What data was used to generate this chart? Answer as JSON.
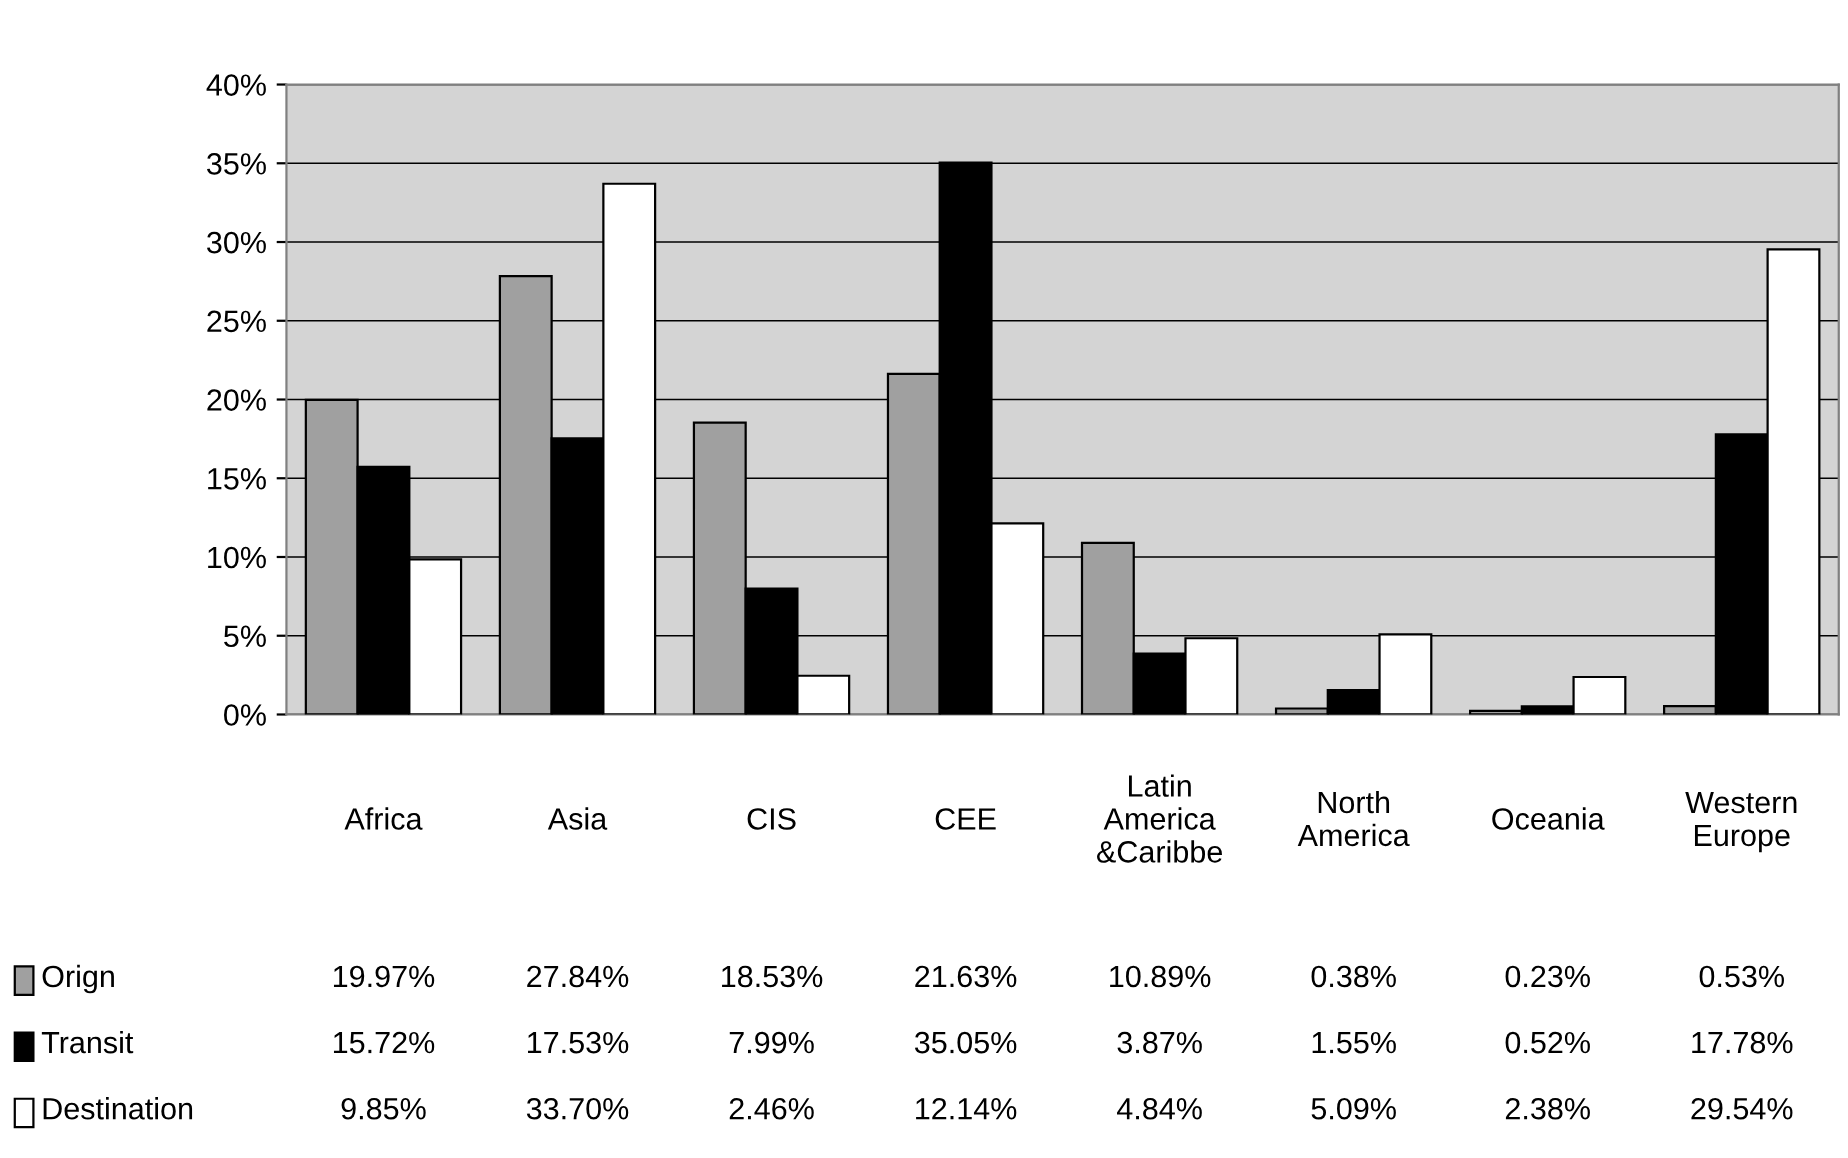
{
  "chart_data": {
    "type": "bar",
    "categories": [
      "Africa",
      "Asia",
      "CIS",
      "CEE",
      "Latin America &Caribbe",
      "North America",
      "Oceania",
      "Western Europe"
    ],
    "series": [
      {
        "name": "Orign",
        "color": "#a0a0a0",
        "values": [
          19.97,
          27.84,
          18.53,
          21.63,
          10.89,
          0.38,
          0.23,
          0.53
        ],
        "value_labels": [
          "19.97%",
          "27.84%",
          "18.53%",
          "21.63%",
          "10.89%",
          "0.38%",
          "0.23%",
          "0.53%"
        ]
      },
      {
        "name": "Transit",
        "color": "#000000",
        "values": [
          15.72,
          17.53,
          7.99,
          35.05,
          3.87,
          1.55,
          0.52,
          17.78
        ],
        "value_labels": [
          "15.72%",
          "17.53%",
          "7.99%",
          "35.05%",
          "3.87%",
          "1.55%",
          "0.52%",
          "17.78%"
        ]
      },
      {
        "name": "Destination",
        "color": "#ffffff",
        "values": [
          9.85,
          33.7,
          2.46,
          12.14,
          4.84,
          5.09,
          2.38,
          29.54
        ],
        "value_labels": [
          "9.85%",
          "33.70%",
          "2.46%",
          "12.14%",
          "4.84%",
          "5.09%",
          "2.38%",
          "29.54%"
        ]
      }
    ],
    "ylim": [
      0,
      40
    ],
    "yticks": [
      {
        "value": 0,
        "label": "0%"
      },
      {
        "value": 5,
        "label": "5%"
      },
      {
        "value": 10,
        "label": "10%"
      },
      {
        "value": 15,
        "label": "15%"
      },
      {
        "value": 20,
        "label": "20%"
      },
      {
        "value": 25,
        "label": "25%"
      },
      {
        "value": 30,
        "label": "30%"
      },
      {
        "value": 35,
        "label": "35%"
      },
      {
        "value": 40,
        "label": "40%"
      }
    ],
    "grid": "y",
    "legend": "bottom left"
  }
}
